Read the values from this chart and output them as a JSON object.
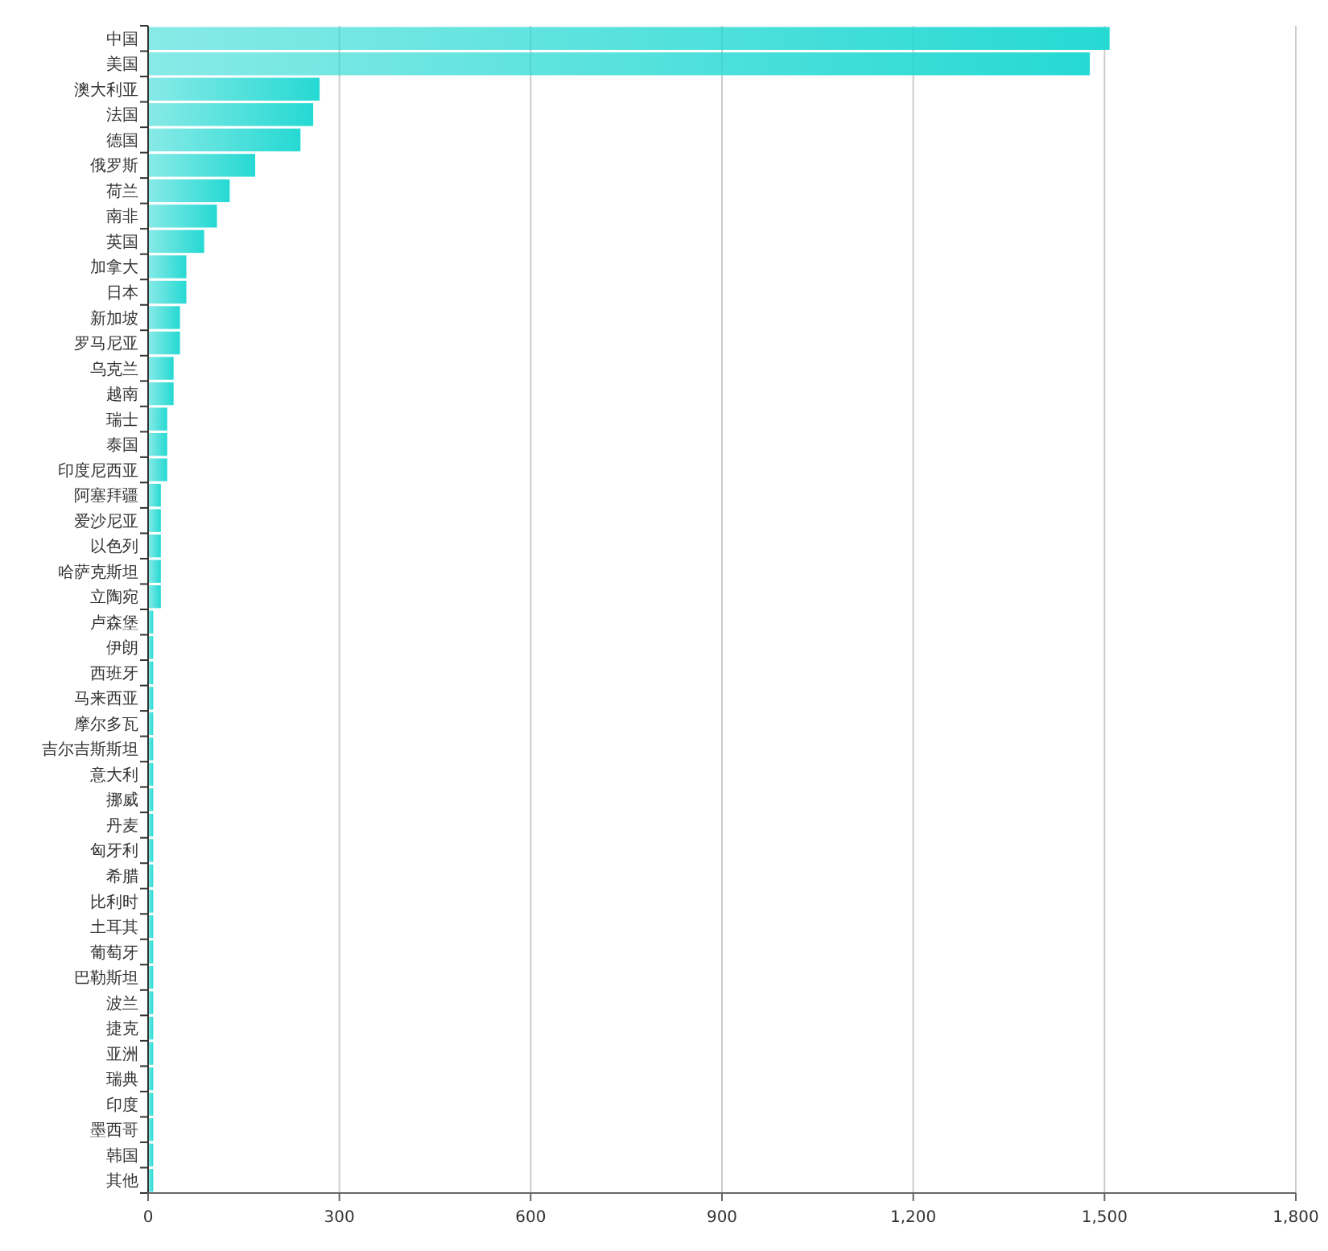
{
  "chart_data": {
    "type": "bar",
    "orientation": "horizontal",
    "categories": [
      "中国",
      "美国",
      "澳大利亚",
      "法国",
      "德国",
      "俄罗斯",
      "荷兰",
      "南非",
      "英国",
      "加拿大",
      "日本",
      "新加坡",
      "罗马尼亚",
      "乌克兰",
      "越南",
      "瑞士",
      "泰国",
      "印度尼西亚",
      "阿塞拜疆",
      "爱沙尼亚",
      "以色列",
      "哈萨克斯坦",
      "立陶宛",
      "卢森堡",
      "伊朗",
      "西班牙",
      "马来西亚",
      "摩尔多瓦",
      "吉尔吉斯斯坦",
      "意大利",
      "挪威",
      "丹麦",
      "匈牙利",
      "希腊",
      "比利时",
      "土耳其",
      "葡萄牙",
      "巴勒斯坦",
      "波兰",
      "捷克",
      "亚洲",
      "瑞典",
      "印度",
      "墨西哥",
      "韩国",
      "其他"
    ],
    "values": [
      1508,
      1477,
      269,
      259,
      239,
      168,
      128,
      108,
      88,
      60,
      60,
      50,
      50,
      40,
      40,
      30,
      30,
      30,
      20,
      20,
      20,
      20,
      20,
      8,
      8,
      8,
      8,
      8,
      8,
      8,
      8,
      8,
      8,
      8,
      8,
      8,
      8,
      8,
      8,
      8,
      8,
      8,
      8,
      8,
      8,
      8
    ],
    "color": "#26d9d3",
    "xlim": [
      0,
      1800
    ],
    "xticks": [
      0,
      300,
      600,
      900,
      {
        "value": 1200,
        "label": "1,200"
      },
      {
        "value": 1500,
        "label": "1,500"
      },
      {
        "value": 1800,
        "label": "1,800"
      }
    ],
    "grid": "x"
  }
}
